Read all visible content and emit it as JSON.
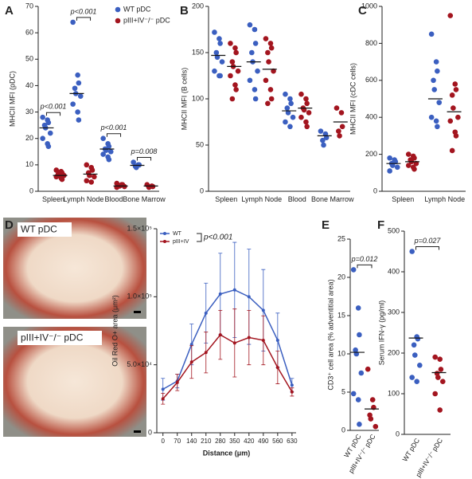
{
  "chart_data": [
    {
      "type": "dotplot",
      "panel": "A",
      "y_label": "MHCII MFI (pDC)",
      "categories": [
        "Spleen",
        "Lymph Node",
        "Blood",
        "Bone Marrow"
      ],
      "series": [
        {
          "name": "WT pDC",
          "color": "#3b5fc0",
          "values": [
            [
              28,
              27,
              26,
              25,
              24,
              22,
              20,
              18,
              17
            ],
            [
              64,
              44,
              41,
              39,
              37,
              36,
              33,
              30,
              27
            ],
            [
              20,
              18,
              17,
              16,
              15.5,
              15,
              14,
              13,
              12
            ],
            [
              11,
              10,
              10,
              9.5,
              9
            ]
          ],
          "means": [
            24,
            37,
            16,
            9.8
          ]
        },
        {
          "name": "pIII+IV⁻/⁻ pDC",
          "color": "#a3151f",
          "values": [
            [
              8,
              7.5,
              7,
              6.5,
              6,
              6,
              5.5,
              5,
              4.5
            ],
            [
              10,
              9,
              8,
              7,
              6,
              5.5,
              4,
              3.5
            ],
            [
              3,
              2.5,
              2.5,
              2,
              2,
              1.8,
              1.5
            ],
            [
              2.5,
              2,
              1.8,
              1.5
            ]
          ],
          "means": [
            6,
            6.5,
            2,
            2
          ]
        }
      ],
      "annotations": [
        "p<0.001",
        "p<0.001",
        "p<0.001",
        "p=0.008"
      ],
      "ylim": [
        0,
        70
      ],
      "yticks": [
        0,
        10,
        20,
        30,
        40,
        50,
        60,
        70
      ],
      "legend": "upper right"
    },
    {
      "type": "dotplot",
      "panel": "B",
      "y_label": "MHCII MFI (B cells)",
      "categories": [
        "Spleen",
        "Lymph Node",
        "Blood",
        "Bone Marrow"
      ],
      "series": [
        {
          "color": "#3b5fc0",
          "values": [
            [
              172,
              165,
              160,
              150,
              145,
              140,
              130,
              125,
              125
            ],
            [
              180,
              175,
              160,
              150,
              140,
              130,
              120,
              110,
              100
            ],
            [
              105,
              100,
              95,
              90,
              85,
              80,
              75,
              70
            ],
            [
              65,
              62,
              58,
              55,
              50
            ]
          ],
          "means": [
            147,
            140,
            87,
            60
          ]
        },
        {
          "color": "#a3151f",
          "values": [
            [
              160,
              155,
              150,
              140,
              135,
              130,
              125,
              115,
              110,
              100
            ],
            [
              165,
              160,
              155,
              150,
              140,
              130,
              120,
              110,
              100,
              95
            ],
            [
              105,
              100,
              95,
              90,
              88,
              85,
              80,
              75,
              70
            ],
            [
              90,
              85,
              70,
              65,
              60
            ]
          ],
          "means": [
            135,
            132,
            90,
            75
          ]
        }
      ],
      "ylim": [
        0,
        200
      ],
      "yticks": [
        0,
        50,
        100,
        150,
        200
      ]
    },
    {
      "type": "dotplot",
      "panel": "C",
      "y_label": "MHCII MFI (cDC cells)",
      "categories": [
        "Spleen",
        "Lymph Node"
      ],
      "series": [
        {
          "color": "#3b5fc0",
          "values": [
            [
              180,
              170,
              160,
              150,
              140,
              130,
              110
            ],
            [
              850,
              700,
              650,
              600,
              550,
              480,
              400,
              380,
              350
            ]
          ],
          "means": [
            150,
            500
          ]
        },
        {
          "color": "#a3151f",
          "values": [
            [
              200,
              190,
              180,
              170,
              160,
              150,
              140,
              130,
              120
            ],
            [
              950,
              580,
              550,
              520,
              450,
              400,
              380,
              320,
              300,
              220
            ]
          ],
          "means": [
            160,
            430
          ]
        }
      ],
      "ylim": [
        0,
        1000
      ],
      "yticks": [
        0,
        200,
        400,
        600,
        800,
        1000
      ]
    },
    {
      "type": "line",
      "panel": "D",
      "x_label": "Distance (μm)",
      "y_label": "Oil Red O+ area (μm²)",
      "micrographs": [
        "WT pDC",
        "pIII+IV⁻/⁻ pDC"
      ],
      "x": [
        0,
        70,
        140,
        210,
        280,
        350,
        420,
        490,
        560,
        630
      ],
      "series": [
        {
          "name": "WT",
          "color": "#3b5fc0",
          "values": [
            32000,
            38000,
            65000,
            88000,
            102000,
            105000,
            100000,
            90000,
            68000,
            35000
          ],
          "errors": [
            8000,
            5000,
            15000,
            22000,
            30000,
            35000,
            35000,
            30000,
            20000,
            5000
          ]
        },
        {
          "name": "pIII+IV",
          "color": "#a3151f",
          "values": [
            25000,
            37000,
            52000,
            59000,
            72000,
            66000,
            70000,
            68000,
            48000,
            30000
          ],
          "errors": [
            4000,
            6000,
            12000,
            15000,
            18000,
            25000,
            20000,
            18000,
            12000,
            3000
          ]
        }
      ],
      "annotation": "p<0.001",
      "xlim": [
        -30,
        650
      ],
      "xticks": [
        0,
        70,
        140,
        210,
        280,
        350,
        420,
        490,
        560,
        630
      ],
      "ylim": [
        0,
        150000
      ],
      "yticks": [
        0,
        {
          "value": 50000,
          "label": "5.0×10⁴"
        },
        {
          "value": 100000,
          "label": "1.0×10⁵"
        },
        {
          "value": 150000,
          "label": "1.5×10⁵"
        }
      ],
      "legend": "upper left"
    },
    {
      "type": "strip",
      "panel": "E",
      "y_label": "CD3⁺ cell area (% adventitial area)",
      "categories": [
        "WT pDC",
        "pIII+IV⁻/⁻ pDC"
      ],
      "colors": [
        "#3b5fc0",
        "#a3151f"
      ],
      "values": [
        [
          21,
          16,
          12.5,
          10.5,
          10,
          7.5,
          4.8,
          4,
          0.8
        ],
        [
          8,
          4,
          3,
          2,
          1.5,
          0.5
        ]
      ],
      "means": [
        10.2,
        2.8
      ],
      "annotation": "p=0.012",
      "ylim": [
        0,
        25
      ],
      "yticks": [
        0,
        5,
        10,
        15,
        20,
        25
      ]
    },
    {
      "type": "strip",
      "panel": "F",
      "y_label": "Serum IFN-γ (pg/ml)",
      "categories": [
        "WT pDC",
        "pIII+IV⁻/⁻ pDC"
      ],
      "colors": [
        "#3b5fc0",
        "#a3151f"
      ],
      "values": [
        [
          450,
          240,
          235,
          220,
          195,
          170,
          140,
          130
        ],
        [
          190,
          185,
          160,
          150,
          140,
          130,
          100,
          60
        ]
      ],
      "means": [
        237,
        152
      ],
      "annotation": "p=0.027",
      "ylim": [
        0,
        500
      ],
      "yticks": [
        0,
        100,
        200,
        300,
        400,
        500
      ]
    }
  ]
}
